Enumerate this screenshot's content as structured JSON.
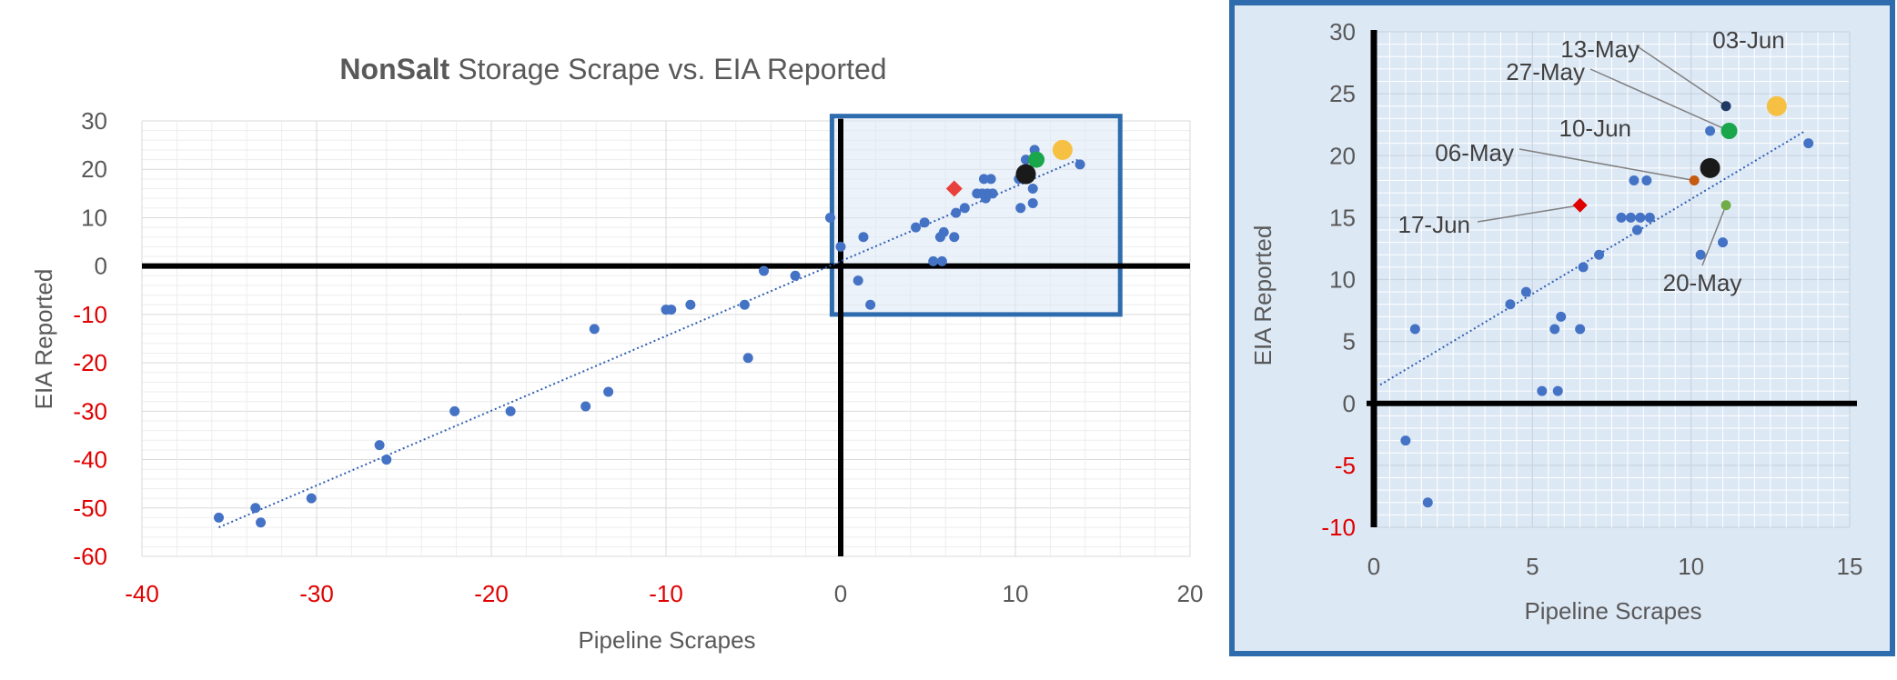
{
  "colors": {
    "point": "#4472c4",
    "trend": "#2f5fb3",
    "axis_zero": "#000000",
    "grid_major": "#d9d9d9",
    "grid_minor": "#ededed",
    "neg_tick": "#e00000",
    "tick": "#595959",
    "highlight_box": "#2e6cad",
    "inset_bg": "#dde8f5",
    "red_marker": "#e8403c",
    "gold_marker": "#f6c142",
    "green_marker": "#1aa64a",
    "black_marker": "#1a1a1a",
    "navy_marker": "#1f3864",
    "brown_marker": "#c55a11",
    "olive_marker": "#70ad47"
  },
  "chart_data": [
    {
      "type": "scatter",
      "title_bold": "NonSalt",
      "title_rest": " Storage Scrape vs. EIA Reported",
      "xlabel": "Pipeline Scrapes",
      "ylabel": "EIA Reported",
      "xlim": [
        -40,
        20
      ],
      "ylim": [
        -60,
        30
      ],
      "xticks": [
        -40,
        -30,
        -20,
        -10,
        0,
        10,
        20
      ],
      "yticks": [
        -60,
        -50,
        -40,
        -30,
        -20,
        -10,
        0,
        10,
        20,
        30
      ],
      "grid": true,
      "trendline": {
        "style": "dotted",
        "x": [
          -35.6,
          13.6
        ],
        "y": [
          -54,
          22
        ]
      },
      "zoom_box": {
        "x": [
          -0.5,
          16
        ],
        "y": [
          -10,
          31
        ]
      },
      "points": [
        {
          "x": -35.6,
          "y": -52
        },
        {
          "x": -33.5,
          "y": -50
        },
        {
          "x": -33.2,
          "y": -53
        },
        {
          "x": -30.3,
          "y": -48
        },
        {
          "x": -26.4,
          "y": -37
        },
        {
          "x": -26.0,
          "y": -40
        },
        {
          "x": -22.1,
          "y": -30
        },
        {
          "x": -18.9,
          "y": -30
        },
        {
          "x": -14.6,
          "y": -29
        },
        {
          "x": -14.1,
          "y": -13
        },
        {
          "x": -13.3,
          "y": -26
        },
        {
          "x": -10.0,
          "y": -9
        },
        {
          "x": -9.7,
          "y": -9
        },
        {
          "x": -8.6,
          "y": -8
        },
        {
          "x": -5.5,
          "y": -8
        },
        {
          "x": -5.3,
          "y": -19
        },
        {
          "x": -4.4,
          "y": -1
        },
        {
          "x": -2.6,
          "y": -2
        },
        {
          "x": -0.6,
          "y": 10
        },
        {
          "x": 0.0,
          "y": 4
        },
        {
          "x": 1.0,
          "y": -3
        },
        {
          "x": 1.3,
          "y": 6
        },
        {
          "x": 1.7,
          "y": -8
        },
        {
          "x": 4.3,
          "y": 8
        },
        {
          "x": 4.8,
          "y": 9
        },
        {
          "x": 5.3,
          "y": 1
        },
        {
          "x": 5.7,
          "y": 6
        },
        {
          "x": 5.9,
          "y": 7
        },
        {
          "x": 5.8,
          "y": 1
        },
        {
          "x": 6.5,
          "y": 6
        },
        {
          "x": 6.6,
          "y": 11
        },
        {
          "x": 7.1,
          "y": 12
        },
        {
          "x": 7.8,
          "y": 15
        },
        {
          "x": 8.1,
          "y": 15
        },
        {
          "x": 8.2,
          "y": 18
        },
        {
          "x": 8.3,
          "y": 14
        },
        {
          "x": 8.4,
          "y": 15
        },
        {
          "x": 8.6,
          "y": 18
        },
        {
          "x": 8.7,
          "y": 15
        },
        {
          "x": 10.2,
          "y": 18
        },
        {
          "x": 10.3,
          "y": 12
        },
        {
          "x": 10.6,
          "y": 22
        },
        {
          "x": 11.0,
          "y": 13
        },
        {
          "x": 11.0,
          "y": 16
        },
        {
          "x": 11.1,
          "y": 24
        },
        {
          "x": 13.7,
          "y": 21
        }
      ],
      "highlights": [
        {
          "x": 6.5,
          "y": 16,
          "shape": "diamond",
          "color": "#e8403c"
        },
        {
          "x": 10.6,
          "y": 19,
          "shape": "circle",
          "size": "large",
          "color": "#1a1a1a"
        },
        {
          "x": 11.2,
          "y": 22,
          "shape": "circle",
          "size": "medium",
          "color": "#1aa64a"
        },
        {
          "x": 12.7,
          "y": 24,
          "shape": "circle",
          "size": "large",
          "color": "#f6c142"
        }
      ]
    },
    {
      "type": "scatter",
      "xlabel": "Pipeline Scrapes",
      "ylabel": "EIA Reported",
      "xlim": [
        0,
        15
      ],
      "ylim": [
        -10,
        30
      ],
      "xticks": [
        0,
        5,
        10,
        15
      ],
      "yticks": [
        -10,
        -5,
        0,
        5,
        10,
        15,
        20,
        25,
        30
      ],
      "grid": true,
      "trendline": {
        "style": "dotted",
        "x": [
          0.2,
          13.6
        ],
        "y": [
          1.5,
          22
        ]
      },
      "points": [
        {
          "x": 1.0,
          "y": -3
        },
        {
          "x": 1.3,
          "y": 6
        },
        {
          "x": 1.7,
          "y": -8
        },
        {
          "x": 4.3,
          "y": 8
        },
        {
          "x": 4.8,
          "y": 9
        },
        {
          "x": 5.3,
          "y": 1
        },
        {
          "x": 5.7,
          "y": 6
        },
        {
          "x": 5.8,
          "y": 1
        },
        {
          "x": 5.9,
          "y": 7
        },
        {
          "x": 6.5,
          "y": 6
        },
        {
          "x": 6.6,
          "y": 11
        },
        {
          "x": 7.1,
          "y": 12
        },
        {
          "x": 7.8,
          "y": 15
        },
        {
          "x": 8.1,
          "y": 15
        },
        {
          "x": 8.2,
          "y": 18
        },
        {
          "x": 8.3,
          "y": 14
        },
        {
          "x": 8.4,
          "y": 15
        },
        {
          "x": 8.6,
          "y": 18
        },
        {
          "x": 8.7,
          "y": 15
        },
        {
          "x": 10.3,
          "y": 12
        },
        {
          "x": 10.6,
          "y": 22
        },
        {
          "x": 11.0,
          "y": 13
        },
        {
          "x": 13.7,
          "y": 21
        }
      ],
      "highlights": [
        {
          "x": 6.5,
          "y": 16,
          "shape": "diamond",
          "color": "#e00000"
        },
        {
          "x": 10.1,
          "y": 18,
          "shape": "circle",
          "size": "small",
          "color": "#c55a11"
        },
        {
          "x": 10.6,
          "y": 19,
          "shape": "circle",
          "size": "large",
          "color": "#1a1a1a"
        },
        {
          "x": 11.1,
          "y": 24,
          "shape": "circle",
          "size": "small",
          "color": "#1f3864"
        },
        {
          "x": 11.2,
          "y": 22,
          "shape": "circle",
          "size": "medium",
          "color": "#1aa64a"
        },
        {
          "x": 11.1,
          "y": 16,
          "shape": "circle",
          "size": "small",
          "color": "#70ad47"
        },
        {
          "x": 12.7,
          "y": 24,
          "shape": "circle",
          "size": "large",
          "color": "#f6c142"
        }
      ],
      "annotations": [
        {
          "text": "13-May",
          "x": 11.1,
          "y": 24
        },
        {
          "text": "03-Jun",
          "x": 12.7,
          "y": 24
        },
        {
          "text": "27-May",
          "x": 11.2,
          "y": 22
        },
        {
          "text": "10-Jun",
          "x": 10.6,
          "y": 19
        },
        {
          "text": "06-May",
          "x": 10.1,
          "y": 18
        },
        {
          "text": "17-Jun",
          "x": 6.5,
          "y": 16
        },
        {
          "text": "20-May",
          "x": 11.1,
          "y": 16
        }
      ]
    }
  ]
}
